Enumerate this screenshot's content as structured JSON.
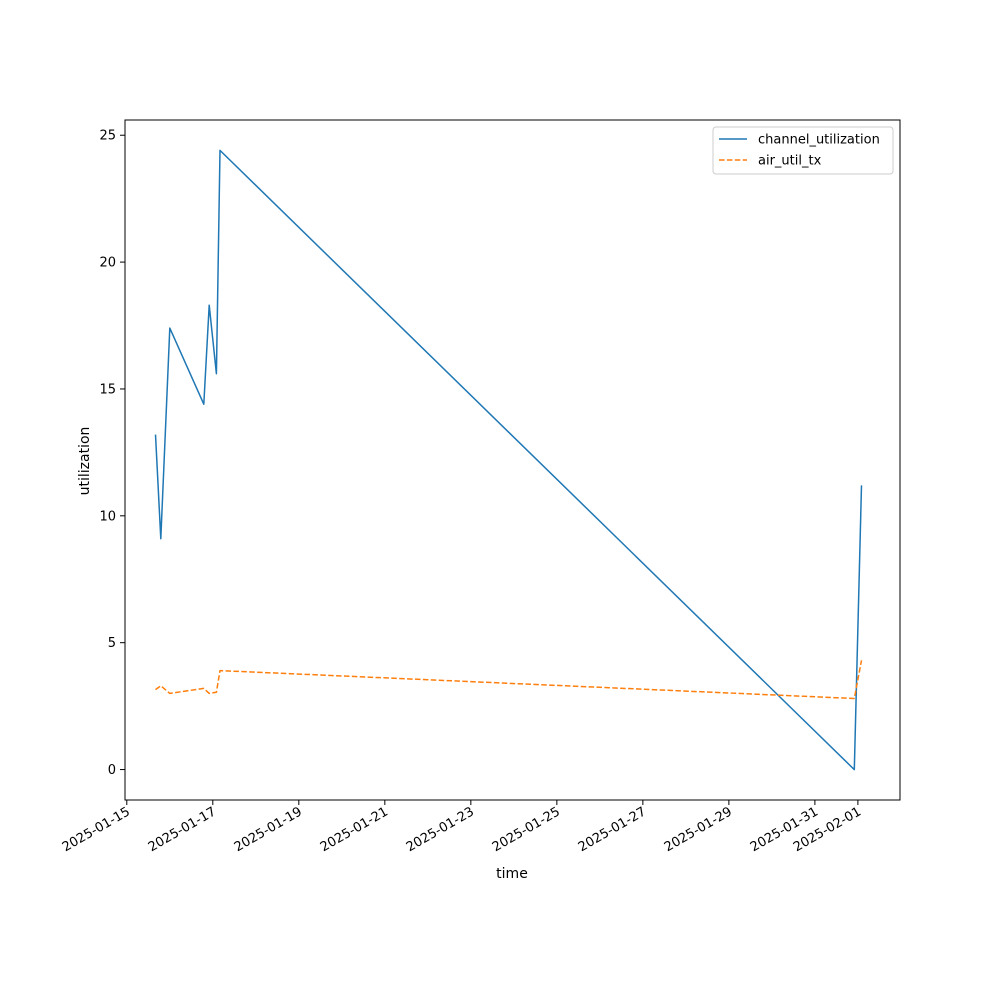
{
  "chart_data": {
    "type": "line",
    "xlabel": "time",
    "ylabel": "utilization",
    "x_scale": "date",
    "xlim": [
      "2025-01-14T23:00",
      "2025-02-01T23:30"
    ],
    "ylim": [
      -1.2,
      25.6
    ],
    "x_ticks": [
      "2025-01-15",
      "2025-01-17",
      "2025-01-19",
      "2025-01-21",
      "2025-01-23",
      "2025-01-25",
      "2025-01-27",
      "2025-01-29",
      "2025-01-31",
      "2025-02-01"
    ],
    "y_ticks": [
      0,
      5,
      10,
      15,
      20,
      25
    ],
    "grid": false,
    "legend_position": "top-right",
    "series": [
      {
        "name": "channel_utilization",
        "color": "#1f77b4",
        "style": "solid",
        "points": [
          {
            "x": "2025-01-15T16:00",
            "y": 13.2
          },
          {
            "x": "2025-01-15T19:00",
            "y": 9.1
          },
          {
            "x": "2025-01-16T00:00",
            "y": 17.4
          },
          {
            "x": "2025-01-16T19:00",
            "y": 14.4
          },
          {
            "x": "2025-01-16T22:00",
            "y": 18.3
          },
          {
            "x": "2025-01-17T02:00",
            "y": 15.6
          },
          {
            "x": "2025-01-17T04:00",
            "y": 24.4
          },
          {
            "x": "2025-01-31T22:00",
            "y": 0.0
          },
          {
            "x": "2025-02-01T02:00",
            "y": 11.2
          }
        ]
      },
      {
        "name": "air_util_tx",
        "color": "#ff7f0e",
        "style": "dashed",
        "points": [
          {
            "x": "2025-01-15T16:00",
            "y": 3.15
          },
          {
            "x": "2025-01-15T19:00",
            "y": 3.3
          },
          {
            "x": "2025-01-16T00:00",
            "y": 3.0
          },
          {
            "x": "2025-01-16T19:00",
            "y": 3.2
          },
          {
            "x": "2025-01-16T22:00",
            "y": 3.0
          },
          {
            "x": "2025-01-17T02:00",
            "y": 3.05
          },
          {
            "x": "2025-01-17T04:00",
            "y": 3.9
          },
          {
            "x": "2025-01-31T22:00",
            "y": 2.8
          },
          {
            "x": "2025-02-01T02:00",
            "y": 4.3
          }
        ]
      }
    ]
  }
}
